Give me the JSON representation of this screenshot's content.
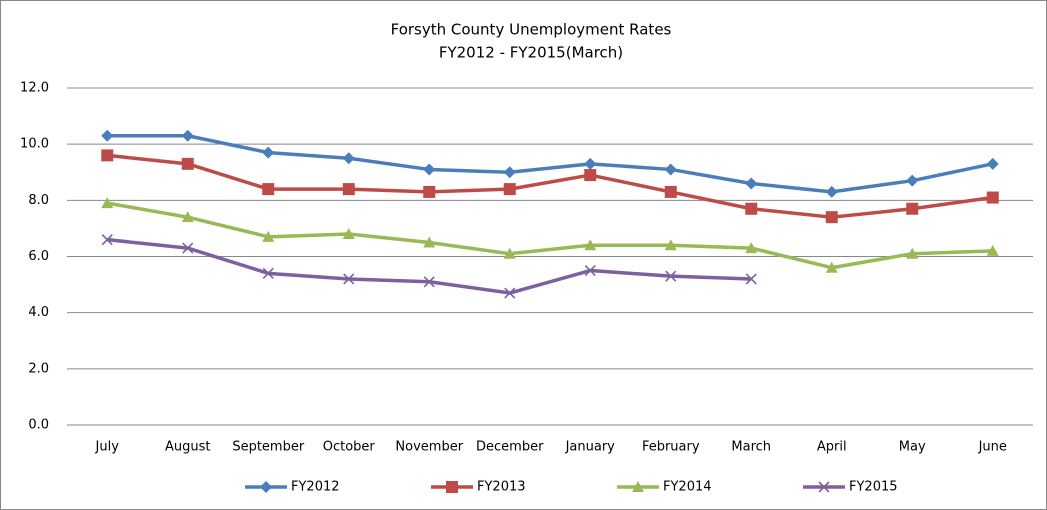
{
  "chart_data": {
    "type": "line",
    "title": "Forsyth County Unemployment  Rates",
    "subtitle": "FY2012 - FY2015(March)",
    "categories": [
      "July",
      "August",
      "September",
      "October",
      "November",
      "December",
      "January",
      "February",
      "March",
      "April",
      "May",
      "June"
    ],
    "series": [
      {
        "name": "FY2012",
        "color": "#4a7ebb",
        "marker": "diamond",
        "values": [
          10.3,
          10.3,
          9.7,
          9.5,
          9.1,
          9.0,
          9.3,
          9.1,
          8.6,
          8.3,
          8.7,
          9.3
        ]
      },
      {
        "name": "FY2013",
        "color": "#be4b48",
        "marker": "square",
        "values": [
          9.6,
          9.3,
          8.4,
          8.4,
          8.3,
          8.4,
          8.9,
          8.3,
          7.7,
          7.4,
          7.7,
          8.1
        ]
      },
      {
        "name": "FY2014",
        "color": "#98b954",
        "marker": "triangle",
        "values": [
          7.9,
          7.4,
          6.7,
          6.8,
          6.5,
          6.1,
          6.4,
          6.4,
          6.3,
          5.6,
          6.1,
          6.2
        ]
      },
      {
        "name": "FY2015",
        "color": "#7d60a0",
        "marker": "x",
        "values": [
          6.6,
          6.3,
          5.4,
          5.2,
          5.1,
          4.7,
          5.5,
          5.3,
          5.2,
          null,
          null,
          null
        ]
      }
    ],
    "ylim": [
      0,
      12
    ],
    "yticks": [
      {
        "value": 0,
        "label": "0.0"
      },
      {
        "value": 2,
        "label": "2.0"
      },
      {
        "value": 4,
        "label": "4.0"
      },
      {
        "value": 6,
        "label": "6.0"
      },
      {
        "value": 8,
        "label": "8.0"
      },
      {
        "value": 10,
        "label": "10.0"
      },
      {
        "value": 12,
        "label": "12.0"
      }
    ],
    "grid": true,
    "legend": "bottom"
  }
}
